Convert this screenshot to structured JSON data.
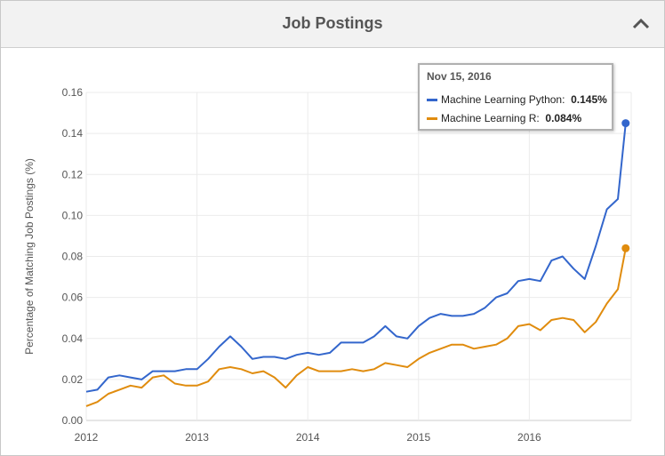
{
  "header": {
    "title": "Job Postings"
  },
  "icons": {
    "collapse": "chevron-up-icon"
  },
  "colors": {
    "python": "#3366cc",
    "r": "#e08c0e",
    "grid": "#ebebeb",
    "axis_text": "#555555"
  },
  "tooltip": {
    "date": "Nov 15, 2016",
    "rows": [
      {
        "label": "Machine Learning Python",
        "value": "0.145%",
        "color": "#3366cc"
      },
      {
        "label": "Machine Learning R",
        "value": "0.084%",
        "color": "#e08c0e"
      }
    ]
  },
  "chart_data": {
    "type": "line",
    "title": "Job Postings",
    "xlabel": "",
    "ylabel": "Percentage of Matching Job Postings (%)",
    "xlim": [
      2012.0,
      2016.92
    ],
    "ylim": [
      0,
      0.16
    ],
    "yticks": [
      "0.00",
      "0.02",
      "0.04",
      "0.06",
      "0.08",
      "0.10",
      "0.12",
      "0.14",
      "0.16"
    ],
    "xticks": [
      "2012",
      "2013",
      "2014",
      "2015",
      "2016"
    ],
    "grid": true,
    "x": [
      2012.0,
      2012.1,
      2012.2,
      2012.3,
      2012.4,
      2012.5,
      2012.6,
      2012.7,
      2012.8,
      2012.9,
      2013.0,
      2013.1,
      2013.2,
      2013.3,
      2013.4,
      2013.5,
      2013.6,
      2013.7,
      2013.8,
      2013.9,
      2014.0,
      2014.1,
      2014.2,
      2014.3,
      2014.4,
      2014.5,
      2014.6,
      2014.7,
      2014.8,
      2014.9,
      2015.0,
      2015.1,
      2015.2,
      2015.3,
      2015.4,
      2015.5,
      2015.6,
      2015.7,
      2015.8,
      2015.9,
      2016.0,
      2016.1,
      2016.2,
      2016.3,
      2016.4,
      2016.5,
      2016.6,
      2016.7,
      2016.8,
      2016.87
    ],
    "series": [
      {
        "name": "Machine Learning Python",
        "values": [
          0.014,
          0.015,
          0.021,
          0.022,
          0.021,
          0.02,
          0.024,
          0.024,
          0.024,
          0.025,
          0.025,
          0.03,
          0.036,
          0.041,
          0.036,
          0.03,
          0.031,
          0.031,
          0.03,
          0.032,
          0.033,
          0.032,
          0.033,
          0.038,
          0.038,
          0.038,
          0.041,
          0.046,
          0.041,
          0.04,
          0.046,
          0.05,
          0.052,
          0.051,
          0.051,
          0.052,
          0.055,
          0.06,
          0.062,
          0.068,
          0.069,
          0.068,
          0.078,
          0.08,
          0.074,
          0.069,
          0.085,
          0.103,
          0.108,
          0.145
        ]
      },
      {
        "name": "Machine Learning R",
        "values": [
          0.007,
          0.009,
          0.013,
          0.015,
          0.017,
          0.016,
          0.021,
          0.022,
          0.018,
          0.017,
          0.017,
          0.019,
          0.025,
          0.026,
          0.025,
          0.023,
          0.024,
          0.021,
          0.016,
          0.022,
          0.026,
          0.024,
          0.024,
          0.024,
          0.025,
          0.024,
          0.025,
          0.028,
          0.027,
          0.026,
          0.03,
          0.033,
          0.035,
          0.037,
          0.037,
          0.035,
          0.036,
          0.037,
          0.04,
          0.046,
          0.047,
          0.044,
          0.049,
          0.05,
          0.049,
          0.043,
          0.048,
          0.057,
          0.064,
          0.084
        ]
      }
    ]
  }
}
